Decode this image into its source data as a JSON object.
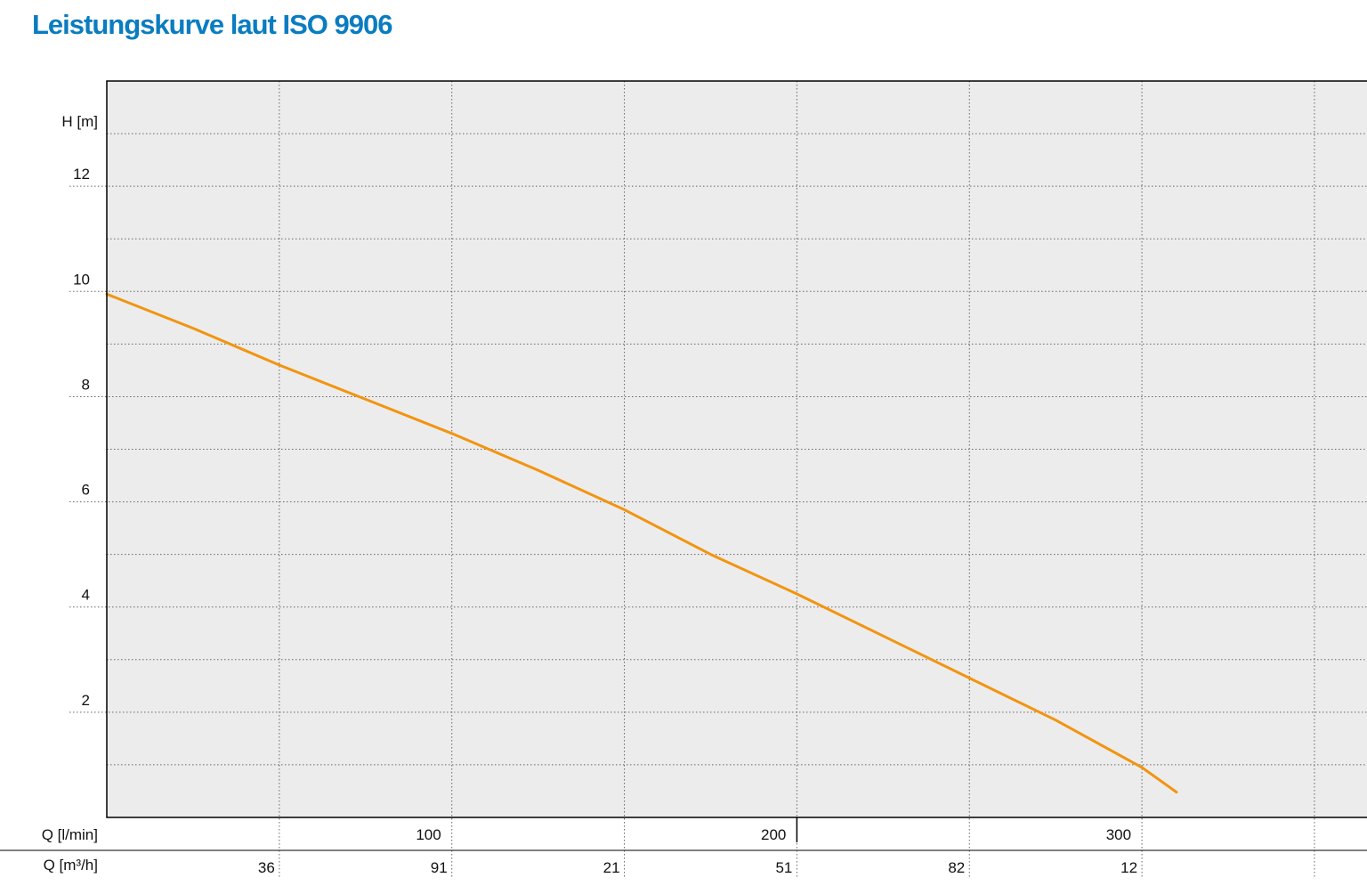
{
  "chart_data": {
    "type": "line",
    "title": "Leistungskurve laut ISO 9906",
    "ylabel": "H [m]",
    "xlabel": "Q [l/min]",
    "x2label": "Q [m³/h]",
    "ylim": [
      0,
      14
    ],
    "xlim": [
      0,
      366
    ],
    "grid": true,
    "y_ticks": [
      2,
      4,
      6,
      8,
      10,
      12
    ],
    "x_ticks": [
      100,
      200,
      300
    ],
    "x2_tick_labels": [
      "36",
      "91",
      "21",
      "51",
      "82",
      "12"
    ],
    "series": [
      {
        "color": "#f29410",
        "x": [
          0,
          25,
          50,
          75,
          100,
          125,
          150,
          175,
          200,
          225,
          250,
          275,
          300,
          310
        ],
        "y": [
          9.95,
          9.3,
          8.6,
          7.95,
          7.3,
          6.6,
          5.85,
          5.0,
          4.25,
          3.45,
          2.65,
          1.85,
          0.95,
          0.48
        ]
      }
    ]
  },
  "colors": {
    "title": "#0a7cc1",
    "plot_background": "#ececec",
    "curve": "#f29410",
    "grid": "#666666"
  }
}
